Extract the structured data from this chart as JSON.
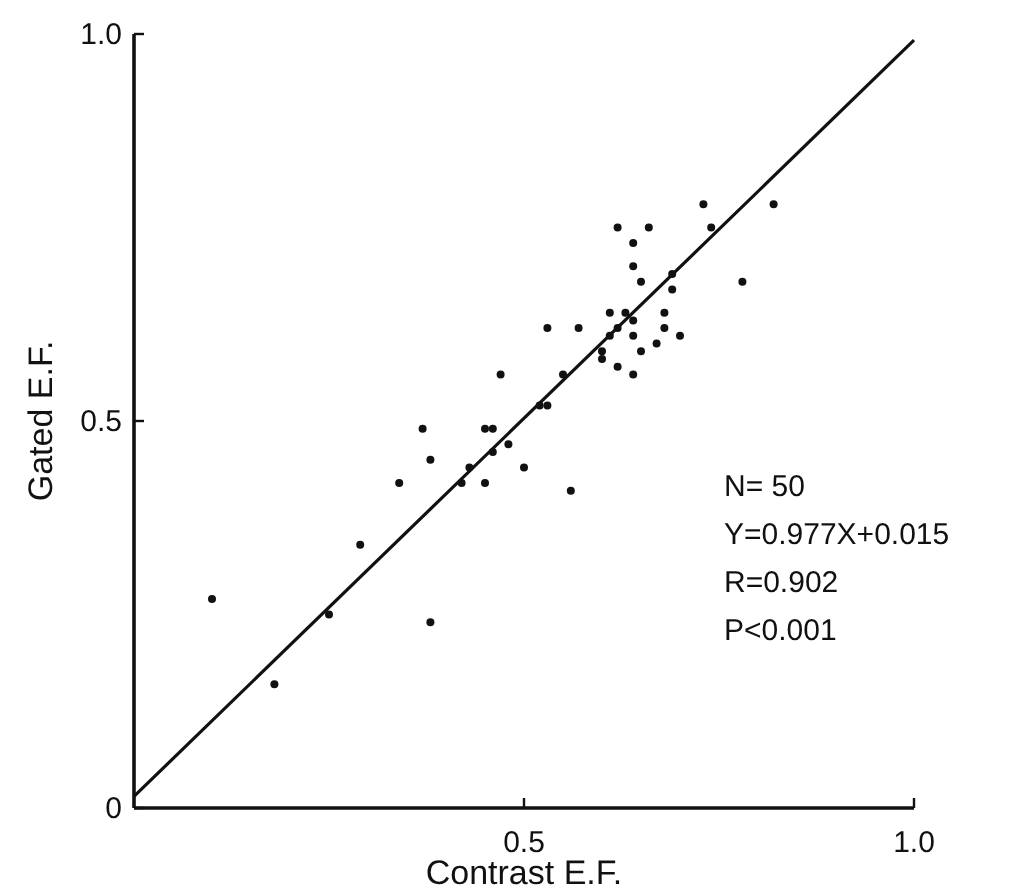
{
  "chart_data": {
    "type": "scatter",
    "xlabel": "Contrast E.F.",
    "ylabel": "Gated E.F.",
    "xlim": [
      0,
      1
    ],
    "ylim": [
      0,
      1
    ],
    "xticks": [
      0.5,
      {
        "value": 1,
        "label": "1.0"
      }
    ],
    "yticks": [
      0,
      0.5,
      {
        "value": 1,
        "label": "1.0"
      }
    ],
    "annotations": [
      "N= 50",
      "Y=0.977X+0.015",
      "R=0.902",
      "P<0.001"
    ],
    "series": [
      {
        "color": "#111111",
        "marker": "circle",
        "x": [
          0.1,
          0.18,
          0.25,
          0.29,
          0.34,
          0.37,
          0.38,
          0.38,
          0.42,
          0.43,
          0.45,
          0.46,
          0.45,
          0.46,
          0.48,
          0.5,
          0.56,
          0.52,
          0.53,
          0.47,
          0.53,
          0.73,
          0.82,
          0.74,
          0.62,
          0.66,
          0.64,
          0.64,
          0.65,
          0.69,
          0.69,
          0.78,
          0.68,
          0.61,
          0.63,
          0.64,
          0.57,
          0.62,
          0.68,
          0.61,
          0.64,
          0.7,
          0.67,
          0.65,
          0.6,
          0.6,
          0.62,
          0.64,
          0.55
        ],
        "values": [
          0.27,
          0.16,
          0.25,
          0.34,
          0.42,
          0.49,
          0.45,
          0.24,
          0.42,
          0.44,
          0.49,
          0.49,
          0.42,
          0.46,
          0.47,
          0.44,
          0.41,
          0.52,
          0.52,
          0.56,
          0.62,
          0.78,
          0.78,
          0.75,
          0.75,
          0.75,
          0.73,
          0.7,
          0.68,
          0.69,
          0.67,
          0.68,
          0.64,
          0.64,
          0.64,
          0.63,
          0.62,
          0.62,
          0.62,
          0.61,
          0.61,
          0.61,
          0.6,
          0.59,
          0.59,
          0.58,
          0.57,
          0.56,
          0.56
        ]
      },
      {
        "type": "line",
        "color": "#111111",
        "line_style": "solid",
        "x": [
          0,
          1
        ],
        "values": [
          0.015,
          0.992
        ]
      }
    ]
  }
}
